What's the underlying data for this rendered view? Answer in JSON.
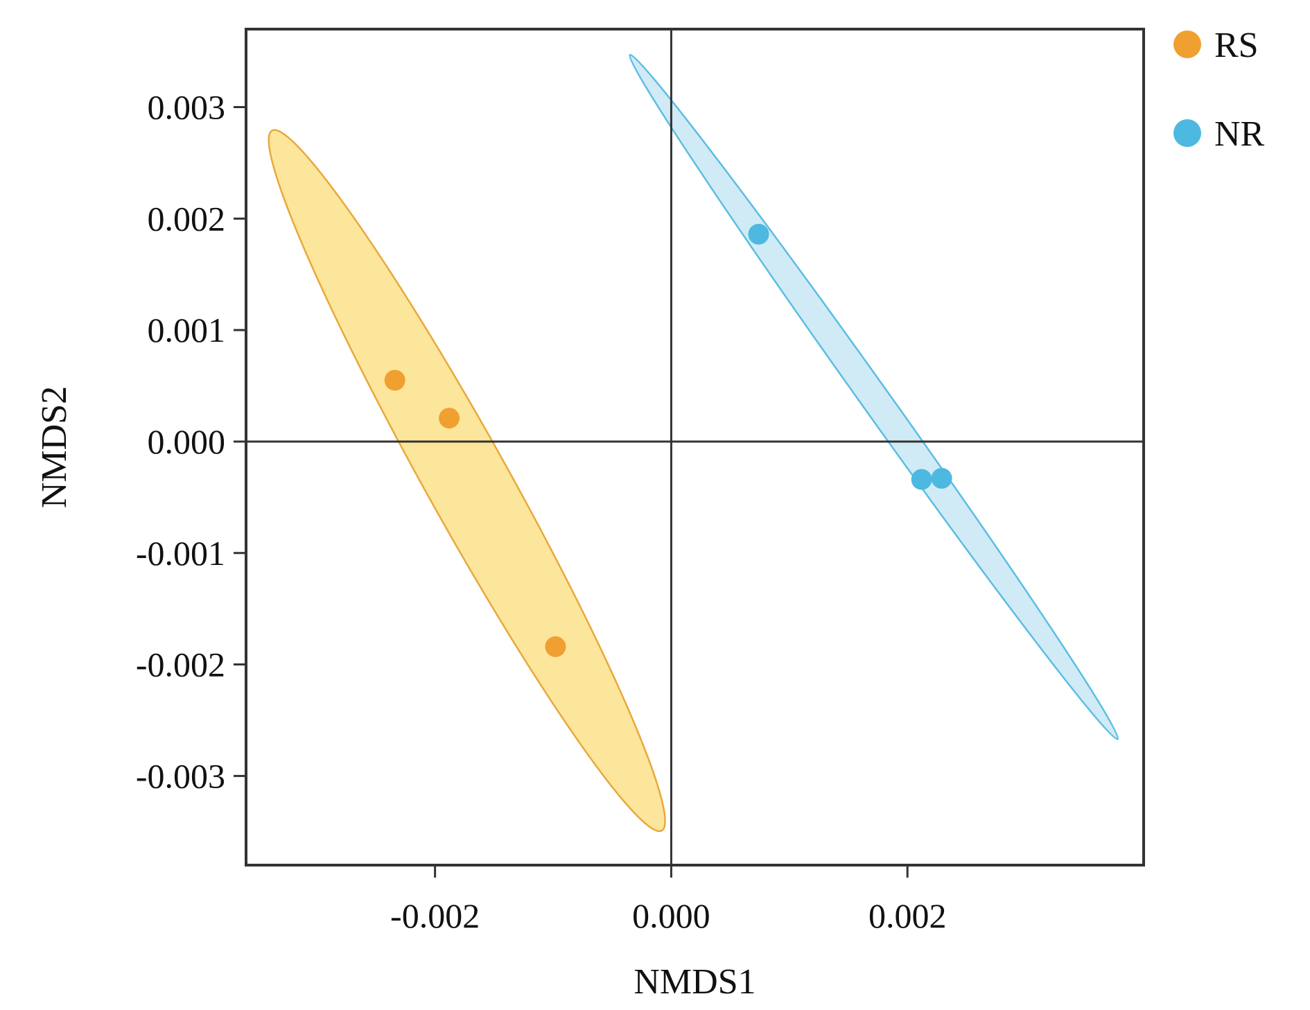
{
  "chart_data": {
    "type": "scatter",
    "title": "",
    "xlabel": "NMDS1",
    "ylabel": "NMDS2",
    "xlim": [
      -0.0036,
      0.004
    ],
    "ylim": [
      -0.0038,
      0.0037
    ],
    "xticks": [
      -0.002,
      0.0,
      0.002
    ],
    "xtick_labels": [
      "-0.002",
      "0.000",
      "0.002"
    ],
    "yticks": [
      0.003,
      0.002,
      0.001,
      0.0,
      -0.001,
      -0.002,
      -0.003
    ],
    "ytick_labels": [
      "0.003",
      "0.002",
      "0.001",
      "0.000",
      "-0.001",
      "-0.002",
      "-0.003"
    ],
    "reference_lines": {
      "x": 0.0,
      "y": 0.0
    },
    "grid": false,
    "legend_position": "top-right, outside plot",
    "series": [
      {
        "name": "RS",
        "color": "#F0A030",
        "ellipse_fill": "#FBE28A",
        "ellipse_stroke": "#E9A83A",
        "points": [
          {
            "x": -0.00234,
            "y": 0.00055
          },
          {
            "x": -0.00188,
            "y": 0.00021
          },
          {
            "x": -0.00098,
            "y": -0.00184
          }
        ],
        "ellipse": {
          "center": [
            -0.00173,
            -0.00035
          ],
          "endpoints": [
            [
              -0.00338,
              0.00279
            ],
            [
              -8e-05,
              -0.00349
            ]
          ],
          "width": 0.00035
        }
      },
      {
        "name": "NR",
        "color": "#4DB8E0",
        "ellipse_fill": "#C8E8F5",
        "ellipse_stroke": "#5BBDE3",
        "points": [
          {
            "x": 0.00074,
            "y": 0.00186
          },
          {
            "x": 0.00212,
            "y": -0.00034
          },
          {
            "x": 0.00229,
            "y": -0.00033
          }
        ],
        "ellipse": {
          "center": [
            0.00172,
            0.0003
          ],
          "endpoints": [
            [
              -0.00035,
              0.00347
            ],
            [
              0.00378,
              -0.00267
            ]
          ],
          "width": 0.00012
        }
      }
    ]
  }
}
